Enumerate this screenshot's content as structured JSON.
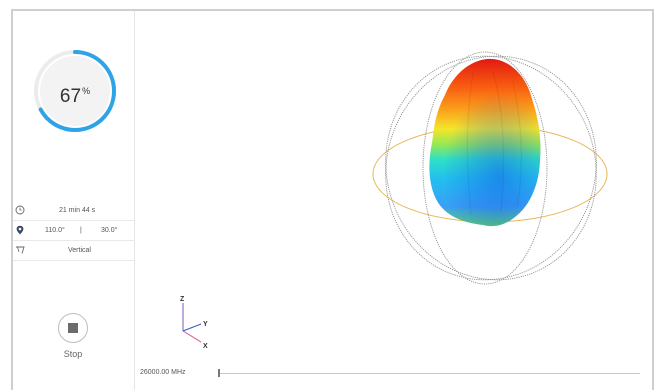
{
  "progress": {
    "value": 67,
    "percent_sign": "%"
  },
  "info": {
    "duration": "21 min 44 s",
    "azimuth": "110.0°",
    "separator": "|",
    "elevation": "30.0°",
    "polarization": "Vertical"
  },
  "stop": {
    "label": "Stop"
  },
  "axes": {
    "z": "Z",
    "y": "Y",
    "x": "X"
  },
  "frequency": {
    "label": "26000.00 MHz",
    "slider_value": 0
  },
  "colors": {
    "progress_arc": "#2ea3e8",
    "progress_track": "#ececec",
    "ring_orange": "#e8b85a",
    "ring_gray": "#8f8f8f"
  }
}
